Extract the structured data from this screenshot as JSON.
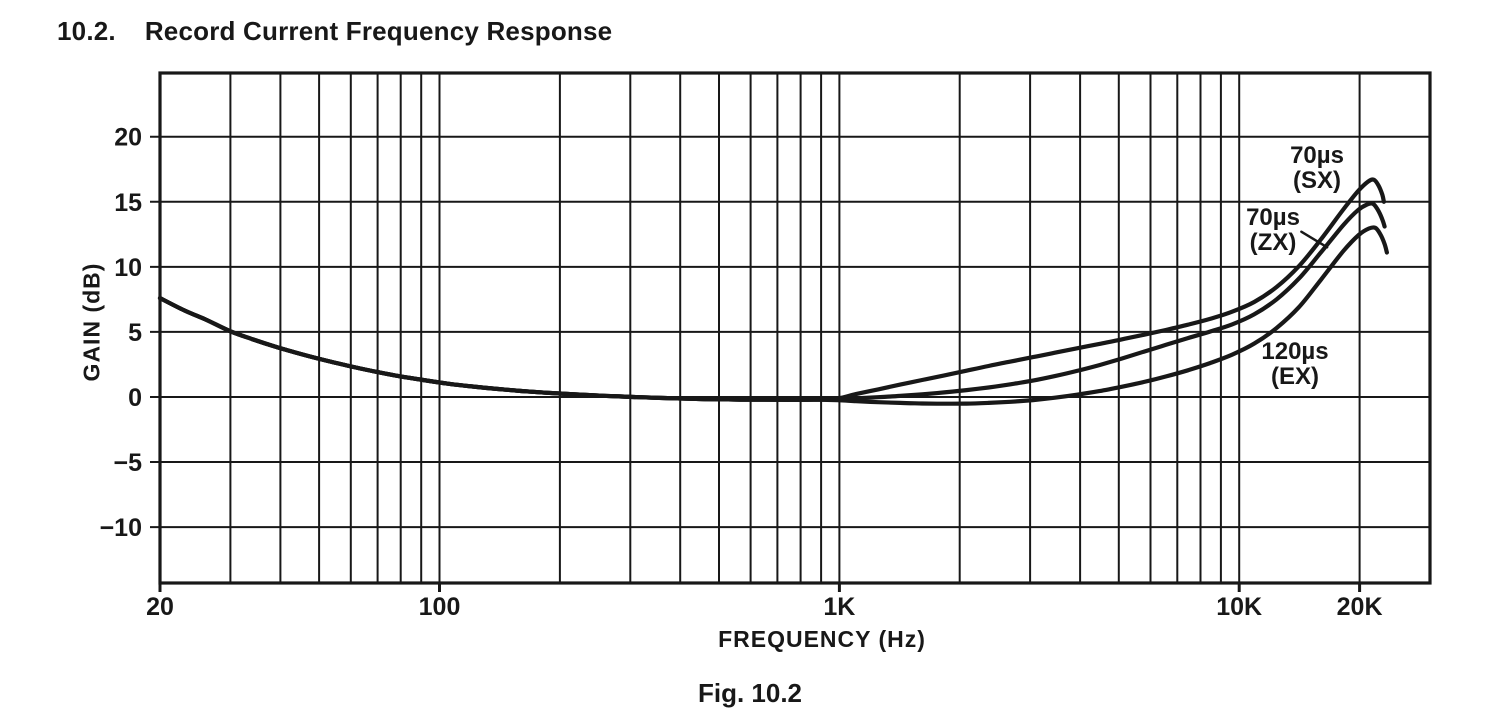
{
  "page": {
    "heading_number": "10.2.",
    "heading_title": "Record Current Frequency Response",
    "caption": "Fig. 10.2"
  },
  "chart_data": {
    "type": "line",
    "title": "Record Current Frequency Response",
    "xlabel": "FREQUENCY (Hz)",
    "ylabel": "GAIN (dB)",
    "ink_color": "#181818",
    "background": "#ffffff",
    "x_axis": {
      "scale": "log",
      "min": 20,
      "max": 30000,
      "tick_labels": [
        {
          "value": 20,
          "label": "20"
        },
        {
          "value": 100,
          "label": "100"
        },
        {
          "value": 1000,
          "label": "1K"
        },
        {
          "value": 10000,
          "label": "10K"
        },
        {
          "value": 20000,
          "label": "20K"
        }
      ],
      "gridlines": [
        30,
        40,
        50,
        60,
        70,
        80,
        90,
        100,
        200,
        300,
        400,
        500,
        600,
        700,
        800,
        900,
        1000,
        2000,
        3000,
        4000,
        5000,
        6000,
        7000,
        8000,
        9000,
        10000,
        20000
      ]
    },
    "y_axis": {
      "min": -14.3,
      "max": 24.9,
      "grid": true,
      "tick_labels": [
        {
          "value": 20,
          "label": "20"
        },
        {
          "value": 15,
          "label": "15"
        },
        {
          "value": 10,
          "label": "10"
        },
        {
          "value": 5,
          "label": "5"
        },
        {
          "value": 0,
          "label": "0"
        },
        {
          "value": -5,
          "label": "−5"
        },
        {
          "value": -10,
          "label": "−10"
        }
      ],
      "gridlines": [
        20,
        15,
        10,
        5,
        0,
        -5,
        -10
      ]
    },
    "common_points": [
      [
        20,
        7.6
      ],
      [
        23,
        6.65
      ],
      [
        26,
        5.95
      ],
      [
        30,
        5.05
      ],
      [
        34,
        4.45
      ],
      [
        39,
        3.85
      ],
      [
        45,
        3.3
      ],
      [
        52,
        2.8
      ],
      [
        60,
        2.35
      ],
      [
        69,
        1.95
      ],
      [
        79,
        1.6
      ],
      [
        91,
        1.3
      ],
      [
        105,
        1.02
      ],
      [
        121,
        0.8
      ],
      [
        139,
        0.62
      ],
      [
        160,
        0.46
      ],
      [
        184,
        0.33
      ],
      [
        212,
        0.22
      ],
      [
        244,
        0.12
      ],
      [
        281,
        0.04
      ],
      [
        323,
        -0.03
      ],
      [
        372,
        -0.09
      ],
      [
        428,
        -0.14
      ],
      [
        492,
        -0.18
      ],
      [
        566,
        -0.2
      ],
      [
        651,
        -0.21
      ],
      [
        749,
        -0.22
      ],
      [
        862,
        -0.21
      ]
    ],
    "series": [
      {
        "name": "SX",
        "label_line1": "70µs",
        "label_line2": "(SX)",
        "peak_db": 16.7,
        "points": [
          [
            990,
            -0.12
          ],
          [
            1100,
            0.22
          ],
          [
            1250,
            0.58
          ],
          [
            1420,
            0.95
          ],
          [
            1610,
            1.3
          ],
          [
            1830,
            1.66
          ],
          [
            2080,
            2.02
          ],
          [
            2360,
            2.38
          ],
          [
            2680,
            2.72
          ],
          [
            3050,
            3.06
          ],
          [
            3460,
            3.4
          ],
          [
            3930,
            3.74
          ],
          [
            4470,
            4.08
          ],
          [
            5080,
            4.42
          ],
          [
            5770,
            4.78
          ],
          [
            6550,
            5.15
          ],
          [
            7440,
            5.55
          ],
          [
            8450,
            6.0
          ],
          [
            9600,
            6.55
          ],
          [
            10900,
            7.3
          ],
          [
            12400,
            8.45
          ],
          [
            14100,
            10.05
          ],
          [
            16000,
            12.1
          ],
          [
            18200,
            14.4
          ],
          [
            19800,
            15.8
          ],
          [
            21000,
            16.55
          ],
          [
            21700,
            16.7
          ],
          [
            22300,
            16.25
          ],
          [
            22800,
            15.55
          ],
          [
            23000,
            15.0
          ]
        ]
      },
      {
        "name": "ZX",
        "label_line1": "70µs",
        "label_line2": "(ZX)",
        "peak_db": 14.85,
        "points": [
          [
            990,
            -0.17
          ],
          [
            1100,
            -0.1
          ],
          [
            1250,
            -0.02
          ],
          [
            1420,
            0.08
          ],
          [
            1610,
            0.2
          ],
          [
            1830,
            0.35
          ],
          [
            2080,
            0.53
          ],
          [
            2360,
            0.73
          ],
          [
            2680,
            0.97
          ],
          [
            3050,
            1.26
          ],
          [
            3460,
            1.6
          ],
          [
            3930,
            2.0
          ],
          [
            4470,
            2.45
          ],
          [
            5080,
            2.95
          ],
          [
            5770,
            3.48
          ],
          [
            6550,
            4.0
          ],
          [
            7440,
            4.52
          ],
          [
            8450,
            5.02
          ],
          [
            9600,
            5.58
          ],
          [
            10900,
            6.35
          ],
          [
            12400,
            7.5
          ],
          [
            14100,
            9.1
          ],
          [
            16000,
            11.1
          ],
          [
            18200,
            13.2
          ],
          [
            19800,
            14.35
          ],
          [
            20900,
            14.8
          ],
          [
            21600,
            14.85
          ],
          [
            22200,
            14.4
          ],
          [
            22800,
            13.65
          ],
          [
            23100,
            13.1
          ]
        ]
      },
      {
        "name": "EX",
        "label_line1": "120µs",
        "label_line2": "(EX)",
        "peak_db": 13.0,
        "points": [
          [
            990,
            -0.25
          ],
          [
            1100,
            -0.32
          ],
          [
            1250,
            -0.4
          ],
          [
            1420,
            -0.46
          ],
          [
            1610,
            -0.5
          ],
          [
            1830,
            -0.52
          ],
          [
            2080,
            -0.51
          ],
          [
            2360,
            -0.46
          ],
          [
            2680,
            -0.37
          ],
          [
            3050,
            -0.24
          ],
          [
            3460,
            -0.06
          ],
          [
            3930,
            0.17
          ],
          [
            4470,
            0.45
          ],
          [
            5080,
            0.78
          ],
          [
            5770,
            1.15
          ],
          [
            6550,
            1.57
          ],
          [
            7440,
            2.05
          ],
          [
            8450,
            2.6
          ],
          [
            9600,
            3.25
          ],
          [
            10900,
            4.1
          ],
          [
            12400,
            5.3
          ],
          [
            14100,
            6.9
          ],
          [
            16000,
            9.0
          ],
          [
            18200,
            11.2
          ],
          [
            19900,
            12.45
          ],
          [
            21100,
            12.95
          ],
          [
            21900,
            13.0
          ],
          [
            22500,
            12.55
          ],
          [
            23100,
            11.75
          ],
          [
            23400,
            11.1
          ]
        ]
      }
    ],
    "annotation_leader": {
      "from": [
        14300,
        12.7
      ],
      "to": [
        16600,
        11.5
      ]
    }
  }
}
